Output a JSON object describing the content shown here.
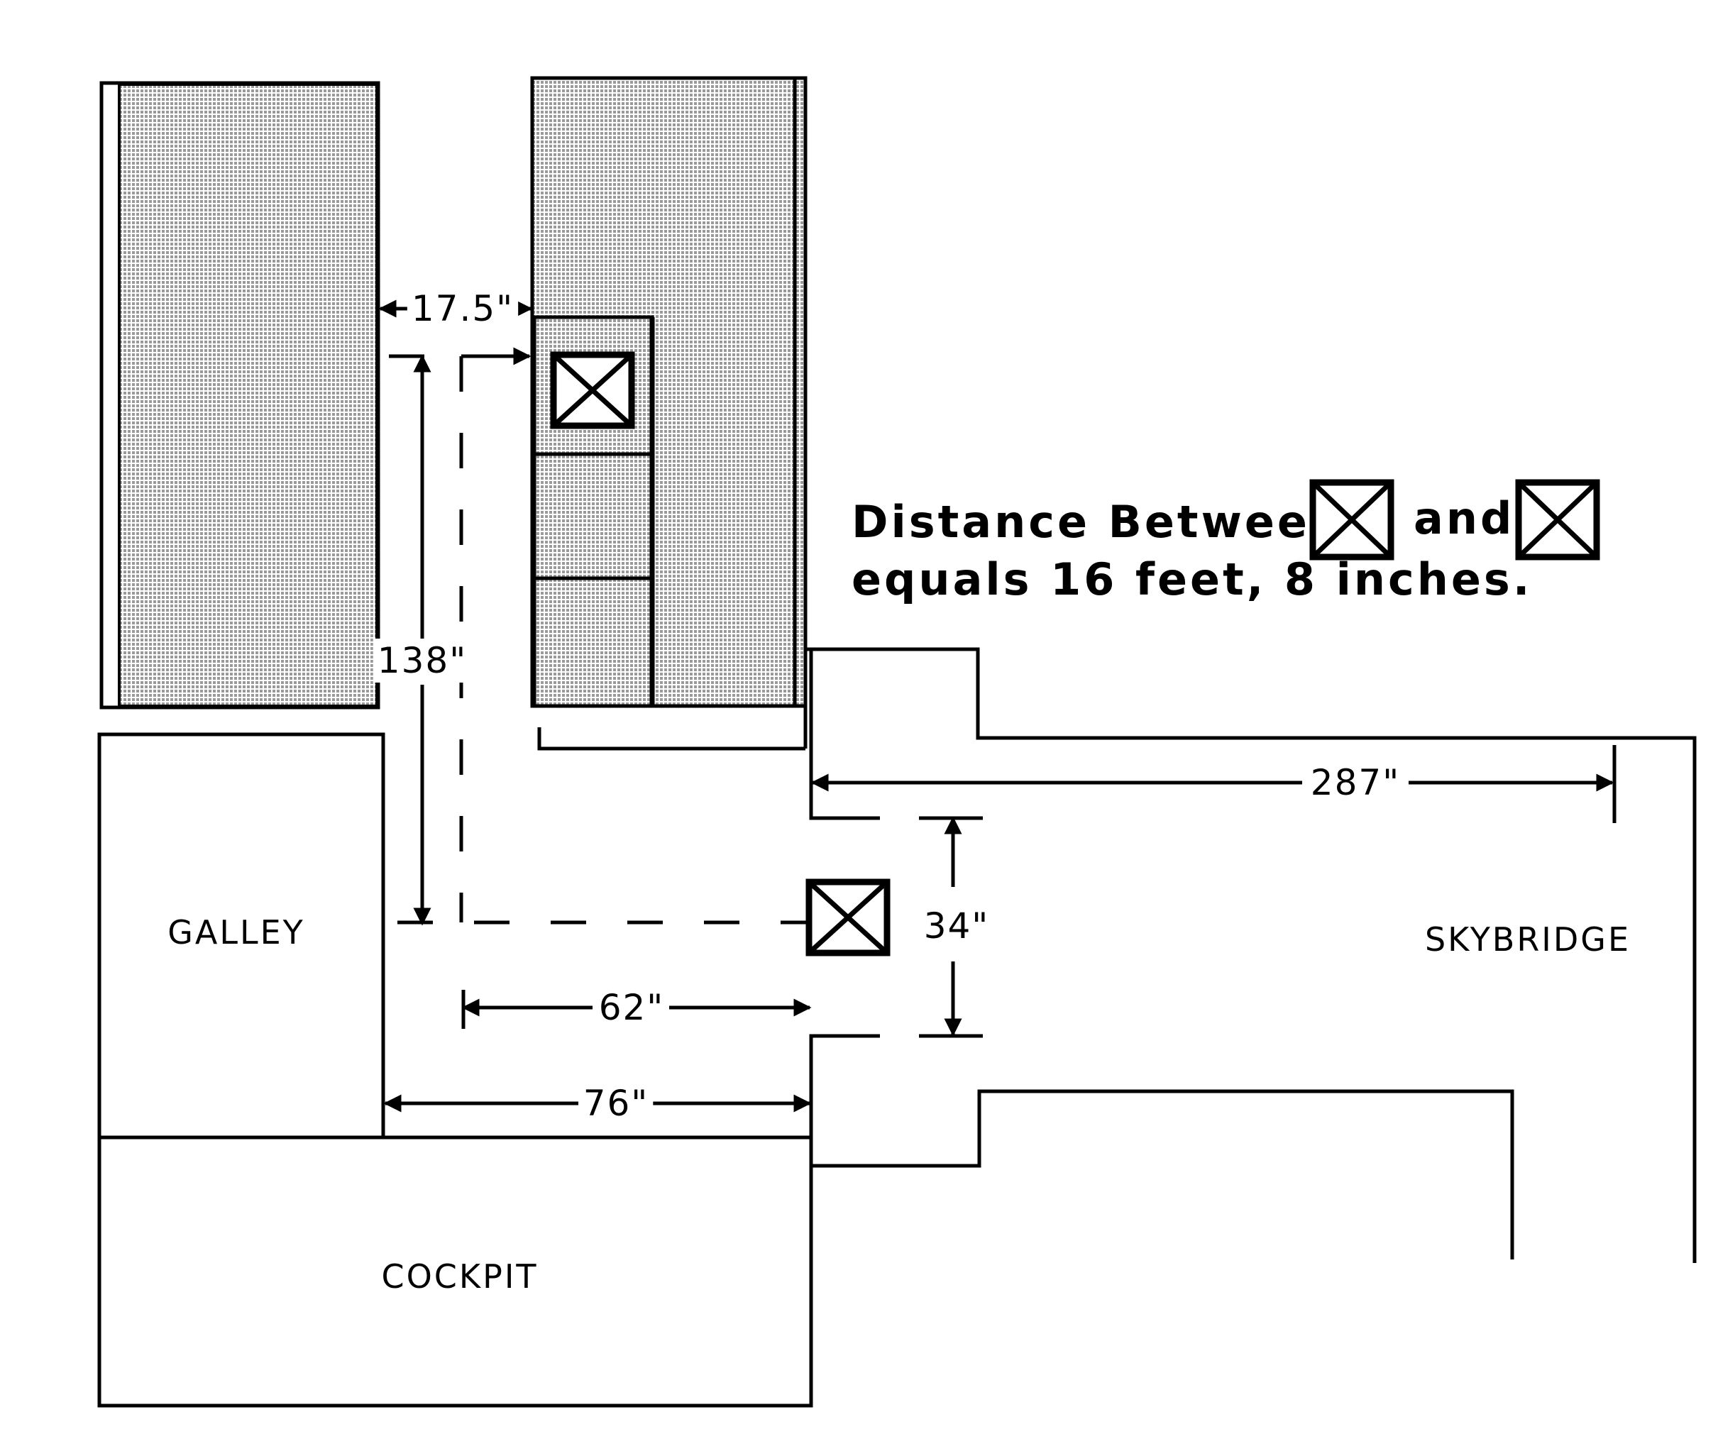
{
  "labels": {
    "galley": "GALLEY",
    "cockpit": "COCKPIT",
    "skybridge": "SKYBRIDGE"
  },
  "dimensions": {
    "gap_width": "17.5\"",
    "aisle_length": "138\"",
    "to_door": "62\"",
    "galley_to_door": "76\"",
    "door_width": "34\"",
    "skybridge_length": "287\""
  },
  "note": {
    "prefix": "Distance Between",
    "conjunction": "and",
    "line2": "equals 16 feet, 8 inches."
  },
  "colors": {
    "ink": "#000000",
    "seat_fill": "#b8b8b8",
    "background": "#ffffff"
  },
  "icons": {
    "marker": "boxed-x-marker"
  }
}
